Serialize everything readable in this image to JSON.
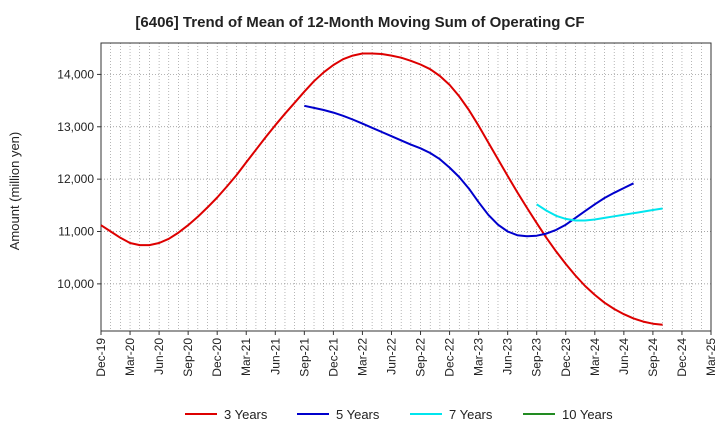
{
  "chart_data": {
    "type": "line",
    "title": "[6406]  Trend of Mean of 12-Month Moving Sum of Operating CF",
    "xlabel": "",
    "ylabel": "Amount (million yen)",
    "ylim": [
      9100,
      14600
    ],
    "yticks": [
      10000,
      11000,
      12000,
      13000,
      14000
    ],
    "ytick_labels": [
      "10,000",
      "11,000",
      "12,000",
      "13,000",
      "14,000"
    ],
    "x_start": "Dec-19",
    "x_end": "Mar-25",
    "xtick_labels": [
      "Dec-19",
      "Mar-20",
      "Jun-20",
      "Sep-20",
      "Dec-20",
      "Mar-21",
      "Jun-21",
      "Sep-21",
      "Dec-21",
      "Mar-22",
      "Jun-22",
      "Sep-22",
      "Dec-22",
      "Mar-23",
      "Jun-23",
      "Sep-23",
      "Dec-23",
      "Mar-24",
      "Jun-24",
      "Sep-24",
      "Dec-24",
      "Mar-25"
    ],
    "grid": true,
    "legend_position": "bottom",
    "series": [
      {
        "name": "3 Years",
        "color": "#dd0000",
        "start_month_index": 0,
        "values": [
          11120,
          11000,
          10880,
          10780,
          10740,
          10740,
          10780,
          10860,
          10980,
          11120,
          11280,
          11460,
          11650,
          11860,
          12080,
          12320,
          12560,
          12800,
          13030,
          13250,
          13460,
          13670,
          13870,
          14040,
          14180,
          14290,
          14360,
          14400,
          14400,
          14390,
          14360,
          14320,
          14260,
          14190,
          14100,
          13970,
          13800,
          13580,
          13320,
          13020,
          12700,
          12380,
          12060,
          11750,
          11450,
          11160,
          10880,
          10620,
          10380,
          10160,
          9960,
          9790,
          9640,
          9520,
          9420,
          9340,
          9280,
          9240,
          9220
        ]
      },
      {
        "name": "5 Years",
        "color": "#0000cc",
        "start_month_index": 21,
        "values": [
          13400,
          13360,
          13320,
          13270,
          13210,
          13140,
          13060,
          12980,
          12900,
          12820,
          12740,
          12660,
          12590,
          12500,
          12380,
          12220,
          12040,
          11820,
          11560,
          11320,
          11130,
          11000,
          10930,
          10910,
          10920,
          10960,
          11030,
          11130,
          11260,
          11390,
          11520,
          11640,
          11740,
          11830,
          11920
        ]
      },
      {
        "name": "7 Years",
        "color": "#00e5ee",
        "start_month_index": 45,
        "values": [
          11520,
          11400,
          11300,
          11240,
          11210,
          11210,
          11230,
          11260,
          11290,
          11320,
          11350,
          11380,
          11410,
          11440
        ]
      },
      {
        "name": "10 Years",
        "color": "#228b22",
        "start_month_index": 0,
        "values": []
      }
    ]
  }
}
